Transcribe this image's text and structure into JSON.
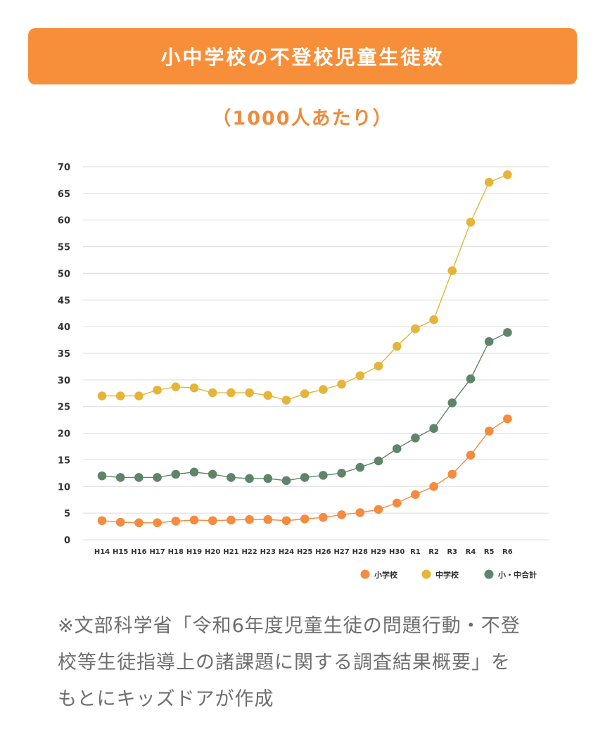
{
  "title": "小中学校の不登校児童生徒数",
  "subtitle": "（1000人あたり）",
  "footnote_lines": [
    "※文部科学省「令和6年度児童生徒の問題行動・不登",
    "校等生徒指導上の諸課題に関する調査結果概要」を",
    "もとにキッズドアが作成"
  ],
  "chart_data": {
    "type": "line",
    "title": "",
    "xlabel": "",
    "ylabel": "",
    "ylim": [
      0,
      70
    ],
    "yticks": [
      0,
      5,
      10,
      15,
      20,
      25,
      30,
      35,
      40,
      45,
      50,
      55,
      60,
      65,
      70
    ],
    "grid": true,
    "legend_position": "bottom-right",
    "categories": [
      "H14",
      "H15",
      "H16",
      "H17",
      "H18",
      "H19",
      "H20",
      "H21",
      "H22",
      "H23",
      "H24",
      "H25",
      "H26",
      "H27",
      "H28",
      "H29",
      "H30",
      "R1",
      "R2",
      "R3",
      "R4",
      "R5",
      "R6"
    ],
    "series": [
      {
        "name": "小学校",
        "color": "#f58b3f",
        "values": [
          3.6,
          3.3,
          3.2,
          3.2,
          3.5,
          3.7,
          3.6,
          3.7,
          3.8,
          3.8,
          3.6,
          3.9,
          4.2,
          4.7,
          5.1,
          5.7,
          6.9,
          8.5,
          10.0,
          12.3,
          15.9,
          20.4,
          22.7
        ]
      },
      {
        "name": "中学校",
        "color": "#e5b53a",
        "values": [
          27.0,
          27.0,
          27.0,
          28.1,
          28.7,
          28.5,
          27.6,
          27.6,
          27.6,
          27.1,
          26.2,
          27.4,
          28.2,
          29.2,
          30.8,
          32.6,
          36.3,
          39.6,
          41.3,
          50.5,
          59.6,
          67.1,
          68.5
        ]
      },
      {
        "name": "小・中合計",
        "color": "#5f8569",
        "values": [
          12.0,
          11.7,
          11.7,
          11.7,
          12.3,
          12.7,
          12.3,
          11.7,
          11.5,
          11.5,
          11.1,
          11.7,
          12.1,
          12.5,
          13.6,
          14.8,
          17.1,
          19.1,
          20.9,
          25.7,
          30.2,
          37.2,
          38.9
        ]
      }
    ]
  }
}
